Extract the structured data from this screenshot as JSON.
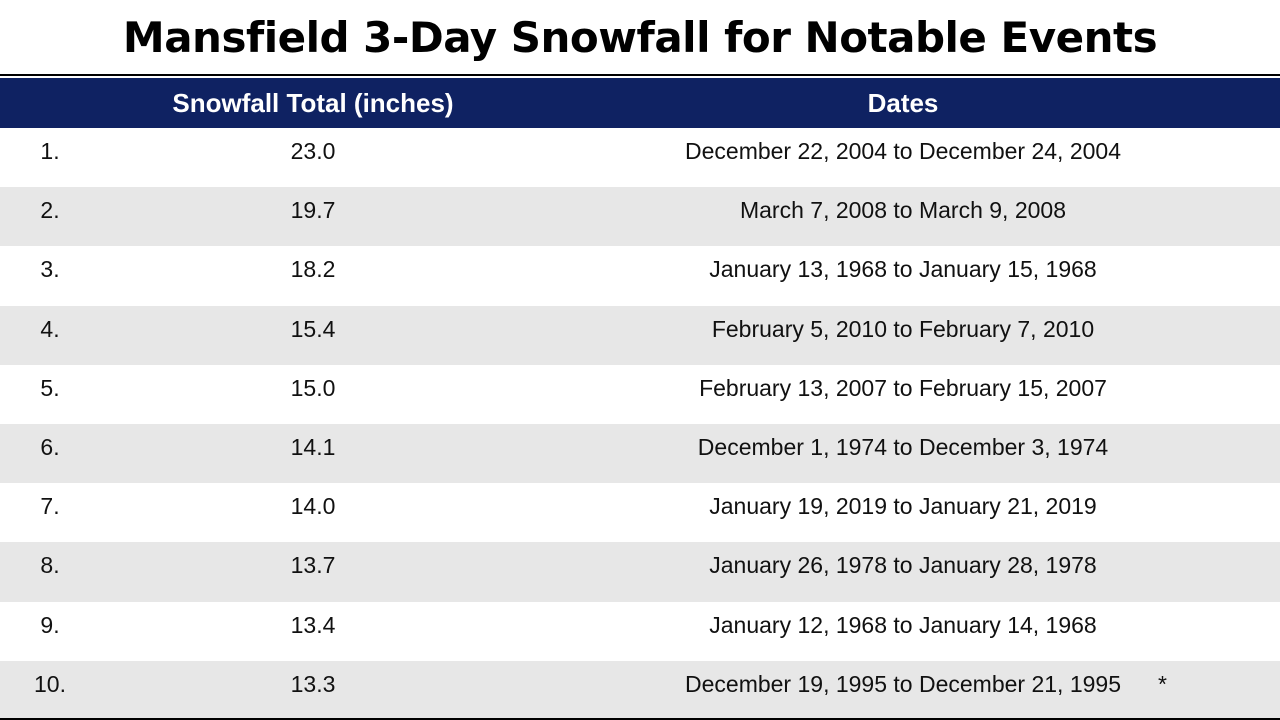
{
  "title": "Mansfield 3-Day Snowfall for Notable Events",
  "table": {
    "headers": {
      "total": "Snowfall Total (inches)",
      "dates": "Dates"
    },
    "rows": [
      {
        "rank": "1.",
        "total": "23.0",
        "dates": "December 22, 2004 to December 24, 2004"
      },
      {
        "rank": "2.",
        "total": "19.7",
        "dates": "March 7, 2008 to March 9, 2008"
      },
      {
        "rank": "3.",
        "total": "18.2",
        "dates": "January 13, 1968 to January 15, 1968"
      },
      {
        "rank": "4.",
        "total": "15.4",
        "dates": "February 5, 2010 to February 7, 2010"
      },
      {
        "rank": "5.",
        "total": "15.0",
        "dates": "February 13, 2007 to February 15, 2007"
      },
      {
        "rank": "6.",
        "total": "14.1",
        "dates": "December 1, 1974 to December 3, 1974"
      },
      {
        "rank": "7.",
        "total": "14.0",
        "dates": "January 19, 2019 to January 21, 2019"
      },
      {
        "rank": "8.",
        "total": "13.7",
        "dates": "January 26, 1978 to January 28, 1978"
      },
      {
        "rank": "9.",
        "total": "13.4",
        "dates": "January 12, 1968 to January 14, 1968"
      },
      {
        "rank": "10.",
        "total": "13.3",
        "dates": "December 19, 1995 to December 21, 1995",
        "note": "*"
      }
    ]
  },
  "colors": {
    "header_bg": "#0f2262",
    "header_text": "#ffffff",
    "stripe": "#e7e7e7"
  }
}
